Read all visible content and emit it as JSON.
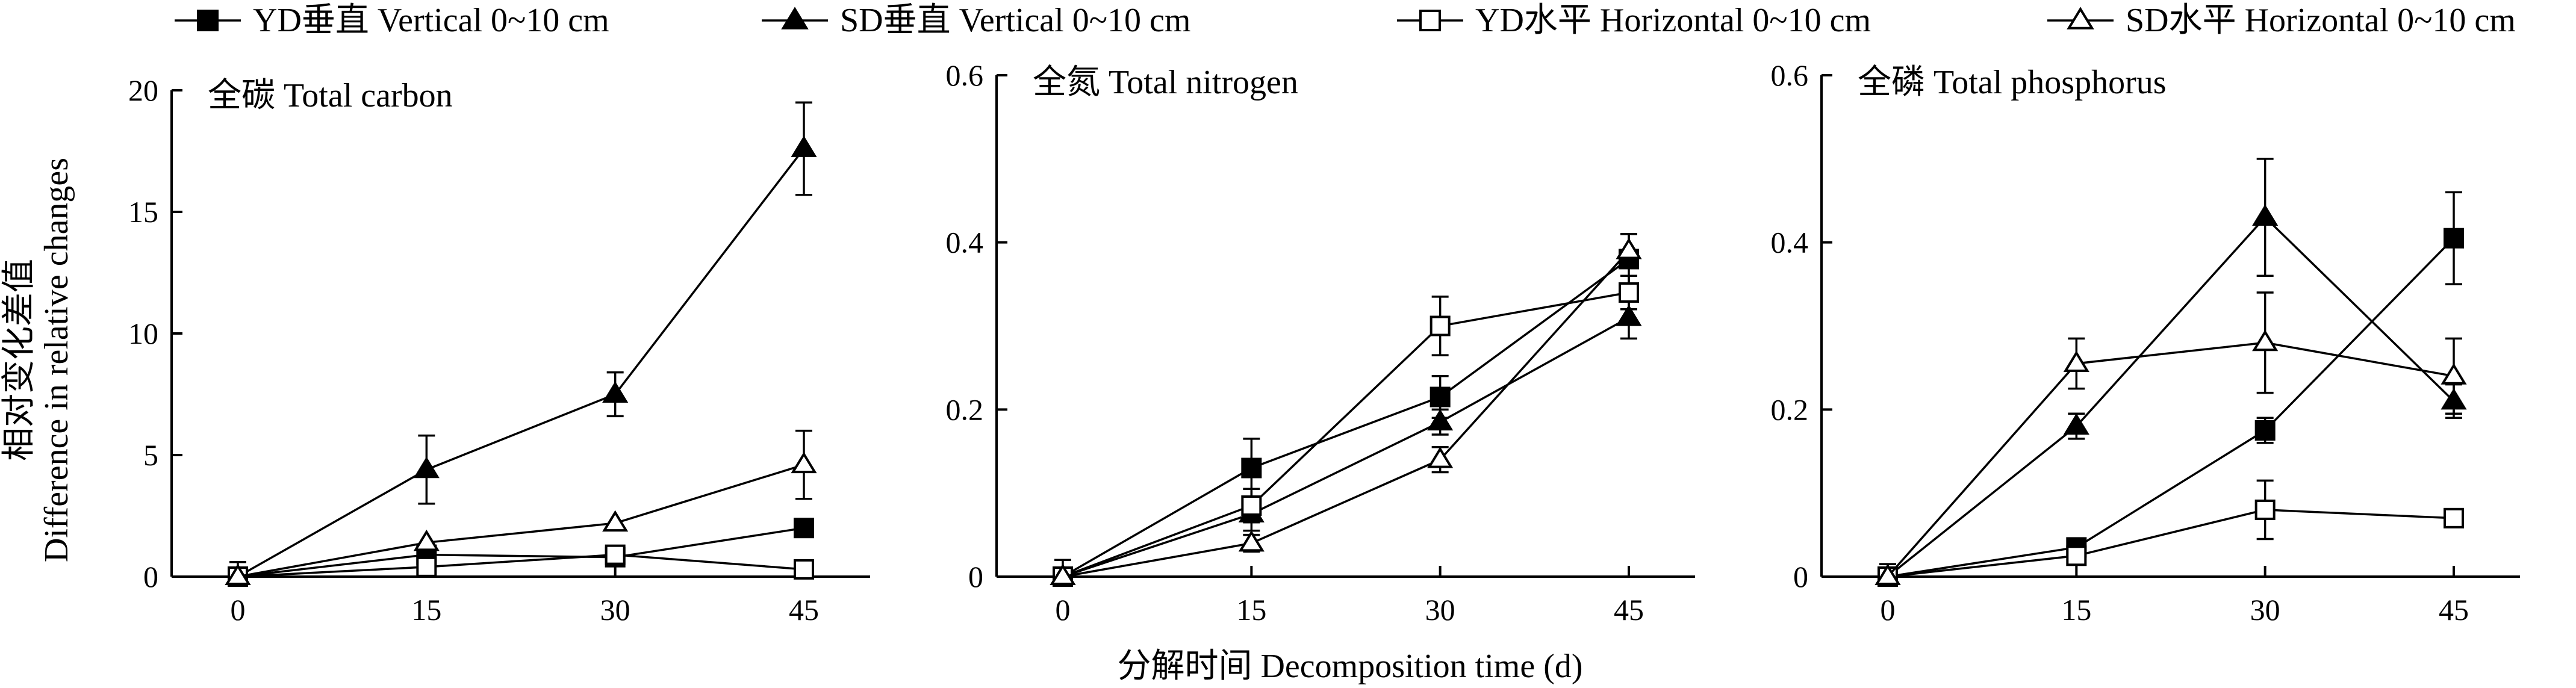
{
  "legend": [
    {
      "label": "YD垂直 Vertical 0~10 cm",
      "marker": "filled-square"
    },
    {
      "label": "SD垂直 Vertical 0~10 cm",
      "marker": "filled-triangle"
    },
    {
      "label": "YD水平 Horizontal 0~10 cm",
      "marker": "open-square"
    },
    {
      "label": "SD水平 Horizontal 0~10 cm",
      "marker": "open-triangle"
    }
  ],
  "y_axis_title": [
    "相对变化差值",
    "Difference in relative changes"
  ],
  "x_axis_title": "分解时间 Decomposition time (d)",
  "chart_data": [
    {
      "type": "line",
      "title": "全碳 Total carbon",
      "x": [
        0,
        15,
        30,
        45
      ],
      "xticks": [
        "0",
        "15",
        "30",
        "45"
      ],
      "ylim": [
        0,
        20
      ],
      "yticks": [
        0,
        5,
        10,
        15,
        20
      ],
      "yticklabels": [
        "0",
        "5",
        "10",
        "15",
        "20"
      ],
      "grid": false,
      "series": [
        {
          "name": "YD垂直 Vertical 0~10 cm",
          "marker": "filled-square",
          "values": [
            0,
            0.9,
            0.8,
            2.0
          ],
          "errors": [
            0,
            0,
            0.2,
            0
          ]
        },
        {
          "name": "SD垂直 Vertical 0~10 cm",
          "marker": "filled-triangle",
          "values": [
            0,
            4.4,
            7.5,
            17.6
          ],
          "errors": [
            0.6,
            1.4,
            0.9,
            1.9
          ]
        },
        {
          "name": "YD水平 Horizontal 0~10 cm",
          "marker": "open-square",
          "values": [
            0,
            0.4,
            0.9,
            0.3
          ],
          "errors": [
            0,
            0,
            0,
            0
          ]
        },
        {
          "name": "SD水平 Horizontal 0~10 cm",
          "marker": "open-triangle",
          "values": [
            0,
            1.4,
            2.2,
            4.6
          ],
          "errors": [
            0,
            0,
            0,
            1.4
          ]
        }
      ]
    },
    {
      "type": "line",
      "title": "全氮 Total nitrogen",
      "x": [
        0,
        15,
        30,
        45
      ],
      "xticks": [
        "0",
        "15",
        "30",
        "45"
      ],
      "ylim": [
        0,
        0.6
      ],
      "yticks": [
        0,
        0.2,
        0.4,
        0.6
      ],
      "yticklabels": [
        "0",
        "0.2",
        "0.4",
        "0.6"
      ],
      "grid": false,
      "series": [
        {
          "name": "YD垂直 Vertical 0~10 cm",
          "marker": "filled-square",
          "values": [
            0,
            0.13,
            0.215,
            0.38
          ],
          "errors": [
            0.02,
            0.035,
            0.025,
            0.03
          ]
        },
        {
          "name": "SD垂直 Vertical 0~10 cm",
          "marker": "filled-triangle",
          "values": [
            0,
            0.075,
            0.185,
            0.31
          ],
          "errors": [
            0,
            0.02,
            0.015,
            0.025
          ]
        },
        {
          "name": "YD水平 Horizontal 0~10 cm",
          "marker": "open-square",
          "values": [
            0,
            0.085,
            0.3,
            0.34
          ],
          "errors": [
            0,
            0.02,
            0.035,
            0.02
          ]
        },
        {
          "name": "SD水平 Horizontal 0~10 cm",
          "marker": "open-triangle",
          "values": [
            0,
            0.04,
            0.14,
            0.39
          ],
          "errors": [
            0,
            0.01,
            0.015,
            0.02
          ]
        }
      ]
    },
    {
      "type": "line",
      "title": "全磷 Total phosphorus",
      "x": [
        0,
        15,
        30,
        45
      ],
      "xticks": [
        "0",
        "15",
        "30",
        "45"
      ],
      "ylim": [
        0,
        0.6
      ],
      "yticks": [
        0,
        0.2,
        0.4,
        0.6
      ],
      "yticklabels": [
        "0",
        "0.2",
        "0.4",
        "0.6"
      ],
      "grid": false,
      "series": [
        {
          "name": "YD垂直 Vertical 0~10 cm",
          "marker": "filled-square",
          "values": [
            0,
            0.035,
            0.175,
            0.405
          ],
          "errors": [
            0.015,
            0.01,
            0.015,
            0.055
          ]
        },
        {
          "name": "SD垂直 Vertical 0~10 cm",
          "marker": "filled-triangle",
          "values": [
            0,
            0.18,
            0.43,
            0.21
          ],
          "errors": [
            0,
            0.015,
            0.07,
            0.02
          ]
        },
        {
          "name": "YD水平 Horizontal 0~10 cm",
          "marker": "open-square",
          "values": [
            0,
            0.025,
            0.08,
            0.07
          ],
          "errors": [
            0,
            0.01,
            0.035,
            0.01
          ]
        },
        {
          "name": "SD水平 Horizontal 0~10 cm",
          "marker": "open-triangle",
          "values": [
            0,
            0.255,
            0.28,
            0.24
          ],
          "errors": [
            0,
            0.03,
            0.06,
            0.045
          ]
        }
      ]
    }
  ]
}
